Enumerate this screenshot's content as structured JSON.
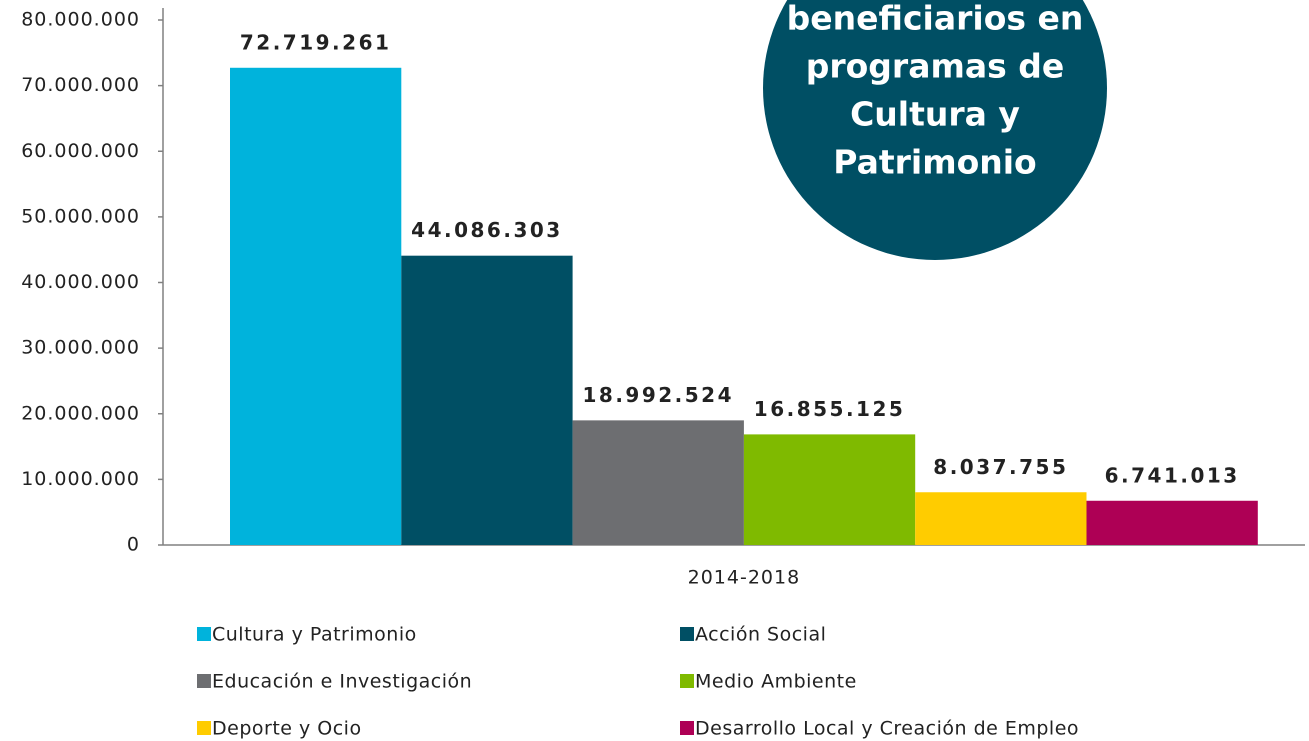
{
  "chart_data": {
    "type": "bar",
    "annotation": [
      "beneficiarios en",
      "programas de",
      "Cultura y",
      "Patrimonio"
    ],
    "categories": [
      "2014-2018"
    ],
    "series": [
      {
        "name": "Cultura y Patrimonio",
        "color": "#00b3dc",
        "values": [
          72719261
        ],
        "value_labels": [
          "72.719.261"
        ]
      },
      {
        "name": "Acción Social",
        "color": "#004f64",
        "values": [
          44086303
        ],
        "value_labels": [
          "44.086.303"
        ]
      },
      {
        "name": "Educación e Investigación",
        "color": "#6d6e71",
        "values": [
          18992524
        ],
        "value_labels": [
          "18.992.524"
        ]
      },
      {
        "name": "Medio Ambiente",
        "color": "#7fba00",
        "values": [
          16855125
        ],
        "value_labels": [
          "16.855.125"
        ]
      },
      {
        "name": "Deporte y Ocio",
        "color": "#ffcc00",
        "values": [
          8037755
        ],
        "value_labels": [
          "8.037.755"
        ]
      },
      {
        "name": "Desarrollo Local y Creación de Empleo",
        "color": "#ae0055",
        "values": [
          6741013
        ],
        "value_labels": [
          "6.741.013"
        ]
      }
    ],
    "ylim": [
      0,
      80000000
    ],
    "yticks": [
      0,
      {
        "value": 10000000,
        "label": "10.000.000"
      },
      {
        "value": 20000000,
        "label": "20.000.000"
      },
      {
        "value": 30000000,
        "label": "30.000.000"
      },
      {
        "value": 40000000,
        "label": "40.000.000"
      },
      {
        "value": 50000000,
        "label": "50.000.000"
      },
      {
        "value": 60000000,
        "label": "60.000.000"
      },
      {
        "value": 70000000,
        "label": "70.000.000"
      },
      {
        "value": 80000000,
        "label": "80.000.000"
      }
    ],
    "annotation_color": "#004f64",
    "grid": false
  }
}
